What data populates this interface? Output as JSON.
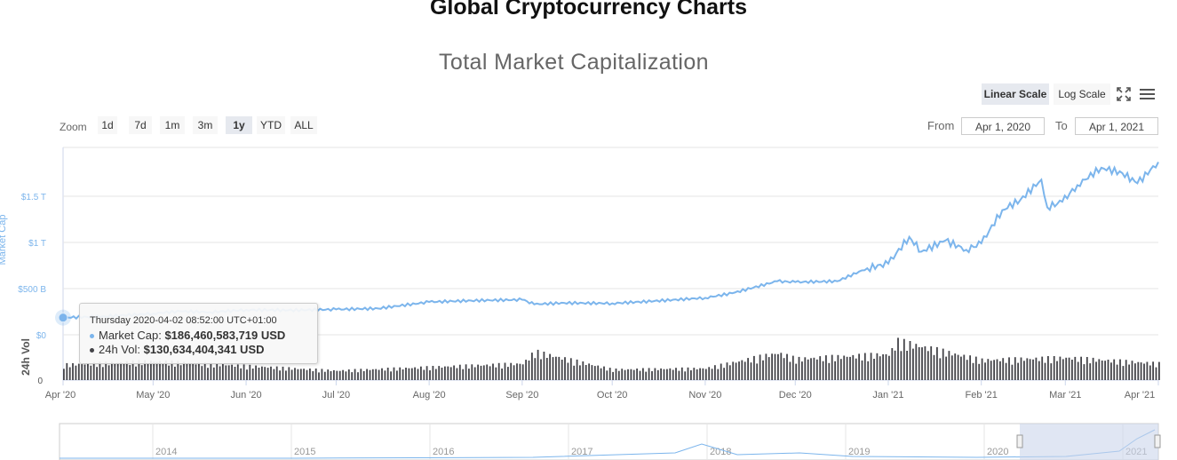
{
  "page": {
    "title": "Global Cryptocurrency Charts"
  },
  "toolbar": {
    "linear_label": "Linear Scale",
    "log_label": "Log Scale",
    "zoom_label": "Zoom",
    "zoom_buttons": [
      "1d",
      "7d",
      "1m",
      "3m",
      "1y",
      "YTD",
      "ALL"
    ],
    "zoom_active": "1y",
    "from_label": "From",
    "from_value": "Apr 1, 2020",
    "to_label": "To",
    "to_value": "Apr 1, 2021"
  },
  "tooltip": {
    "header": "Thursday 2020-04-02 08:52:00 UTC+01:00",
    "mcap_label": "Market Cap:",
    "mcap_value": "$186,460,583,719 USD",
    "vol_label": "24h Vol:",
    "vol_value": "$130,634,404,341 USD"
  },
  "colors": {
    "market_cap": "#7cb5ec",
    "volume": "#434348",
    "navigator_mask": "#ccd6eb"
  },
  "icons": {
    "fullscreen": "fullscreen-icon",
    "menu": "menu-icon"
  },
  "chart_data": {
    "type": "line",
    "title": "Total Market Capitalization",
    "y_axis": {
      "label": "Market Cap",
      "ticks": [
        "$0",
        "$500 B",
        "$1 T",
        "$1.5 T"
      ],
      "tick_values": [
        0,
        500,
        1000,
        1500
      ],
      "unit": "billion USD",
      "range": [
        0,
        2000
      ]
    },
    "volume_axis": {
      "label": "24h Vol",
      "ticks": [
        "0"
      ]
    },
    "x_axis": {
      "ticks": [
        "Apr '20",
        "May '20",
        "Jun '20",
        "Jul '20",
        "Aug '20",
        "Sep '20",
        "Oct '20",
        "Nov '20",
        "Dec '20",
        "Jan '21",
        "Feb '21",
        "Mar '21",
        "Apr '21"
      ]
    },
    "navigator_ticks": [
      "2014",
      "2015",
      "2016",
      "2017",
      "2018",
      "2019",
      "2020",
      "2021"
    ],
    "series": [
      {
        "name": "Market Cap",
        "x": [
          "2020-04-01",
          "2020-04-15",
          "2020-05-01",
          "2020-05-10",
          "2020-05-20",
          "2020-06-01",
          "2020-06-15",
          "2020-07-01",
          "2020-07-15",
          "2020-08-01",
          "2020-08-15",
          "2020-09-01",
          "2020-09-05",
          "2020-09-15",
          "2020-10-01",
          "2020-10-15",
          "2020-11-01",
          "2020-11-10",
          "2020-11-25",
          "2020-12-01",
          "2020-12-15",
          "2020-12-25",
          "2021-01-01",
          "2021-01-08",
          "2021-01-12",
          "2021-01-20",
          "2021-01-27",
          "2021-02-01",
          "2021-02-08",
          "2021-02-14",
          "2021-02-21",
          "2021-02-23",
          "2021-02-28",
          "2021-03-05",
          "2021-03-13",
          "2021-03-20",
          "2021-03-25",
          "2021-04-01"
        ],
        "values": [
          186,
          200,
          230,
          255,
          245,
          270,
          265,
          275,
          285,
          355,
          370,
          380,
          330,
          345,
          340,
          365,
          400,
          450,
          580,
          570,
          580,
          720,
          770,
          1060,
          900,
          1020,
          920,
          990,
          1350,
          1460,
          1680,
          1380,
          1440,
          1620,
          1810,
          1750,
          1640,
          1870
        ]
      },
      {
        "name": "24h Vol",
        "unit": "billion USD",
        "x": [
          "2020-04-01",
          "2020-05-01",
          "2020-06-01",
          "2020-07-01",
          "2020-08-01",
          "2020-09-01",
          "2020-09-05",
          "2020-10-01",
          "2020-11-01",
          "2020-11-25",
          "2020-12-01",
          "2021-01-01",
          "2021-01-04",
          "2021-02-01",
          "2021-03-01",
          "2021-04-01"
        ],
        "values": [
          131,
          160,
          120,
          80,
          110,
          140,
          240,
          90,
          100,
          230,
          180,
          220,
          330,
          170,
          190,
          140
        ]
      }
    ]
  }
}
